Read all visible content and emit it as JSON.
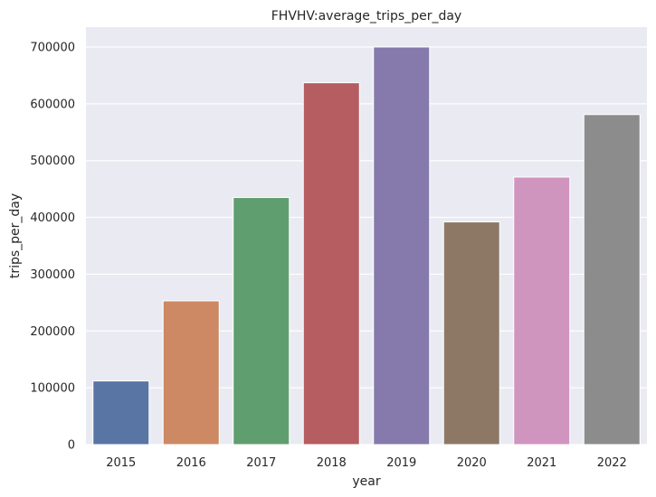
{
  "chart_data": {
    "type": "bar",
    "title": "FHVHV:average_trips_per_day",
    "xlabel": "year",
    "ylabel": "trips_per_day",
    "categories": [
      "2015",
      "2016",
      "2017",
      "2018",
      "2019",
      "2020",
      "2021",
      "2022"
    ],
    "values": [
      112000,
      253000,
      435000,
      637000,
      700000,
      392000,
      471000,
      581000
    ],
    "ylim": [
      0,
      735000
    ],
    "yticks": [
      0,
      100000,
      200000,
      300000,
      400000,
      500000,
      600000,
      700000
    ],
    "ytick_labels": [
      "0",
      "100000",
      "200000",
      "300000",
      "400000",
      "500000",
      "600000",
      "700000"
    ],
    "grid": true,
    "colors": [
      "#5875a4",
      "#cc8963",
      "#5f9e6e",
      "#b55d60",
      "#857aab",
      "#8d7866",
      "#d095bf",
      "#8c8c8c"
    ],
    "background": "#eaeaf2"
  }
}
